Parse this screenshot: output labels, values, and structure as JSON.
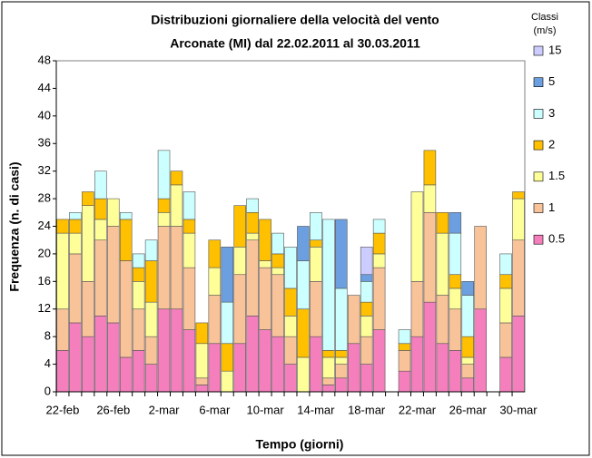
{
  "chart_data": {
    "type": "stacked-bar",
    "title": "Distribuzioni giornaliere della velocità del vento",
    "subtitle": "Arconate (MI) dal 22.02.2011 al 30.03.2011",
    "x_label": "Tempo (giorni)",
    "y_label": "Frequenza (n. di casi)",
    "legend_title": [
      "Classi",
      "(m/s)"
    ],
    "categories": [
      "22-feb",
      null,
      null,
      null,
      "26-feb",
      null,
      null,
      null,
      "2-mar",
      null,
      null,
      null,
      "6-mar",
      null,
      null,
      null,
      "10-mar",
      null,
      null,
      null,
      "14-mar",
      null,
      null,
      null,
      "18-mar",
      null,
      null,
      null,
      "22-mar",
      null,
      null,
      null,
      "26-mar",
      null,
      null,
      null,
      "30-mar"
    ],
    "series": [
      {
        "name": "0.5",
        "color": "#f57fbd",
        "values": [
          6,
          10,
          8,
          11,
          10,
          5,
          6,
          4,
          12,
          12,
          9,
          1,
          7,
          0,
          7,
          11,
          9,
          8,
          4,
          0,
          8,
          1,
          2,
          7,
          4,
          9,
          0,
          3,
          8,
          13,
          7,
          6,
          2,
          12,
          0,
          5,
          11
        ]
      },
      {
        "name": "1",
        "color": "#f9c39a",
        "values": [
          6,
          10,
          8,
          11,
          14,
          14,
          6,
          4,
          12,
          12,
          9,
          1,
          7,
          0,
          10,
          11,
          9,
          9,
          4,
          0,
          8,
          1,
          2,
          7,
          4,
          9,
          0,
          3,
          8,
          13,
          7,
          6,
          2,
          12,
          0,
          5,
          11
        ]
      },
      {
        "name": "1.5",
        "color": "#ffff99",
        "values": [
          11,
          3,
          11,
          3,
          4,
          0,
          4,
          5,
          2,
          6,
          5,
          5,
          4,
          3,
          4,
          1,
          1,
          1,
          3,
          5,
          5,
          3,
          1,
          0,
          3,
          2,
          0,
          0,
          13,
          4,
          9,
          3,
          1,
          0,
          0,
          5,
          6
        ]
      },
      {
        "name": "2",
        "color": "#ffc000",
        "values": [
          2,
          2,
          2,
          3,
          0,
          6,
          2,
          6,
          2,
          2,
          2,
          3,
          4,
          4,
          6,
          3,
          6,
          2,
          4,
          7,
          1,
          1,
          1,
          0,
          2,
          3,
          0,
          1,
          0,
          5,
          3,
          2,
          3,
          0,
          0,
          2,
          1
        ]
      },
      {
        "name": "3",
        "color": "#ccffff",
        "values": [
          0,
          1,
          0,
          4,
          0,
          1,
          2,
          3,
          7,
          0,
          4,
          0,
          0,
          6,
          0,
          2,
          0,
          3,
          6,
          7,
          4,
          19,
          9,
          0,
          3,
          2,
          0,
          2,
          0,
          0,
          0,
          6,
          6,
          0,
          0,
          3,
          0
        ]
      },
      {
        "name": "5",
        "color": "#6c9fe0",
        "values": [
          0,
          0,
          0,
          0,
          0,
          0,
          0,
          0,
          0,
          0,
          0,
          0,
          0,
          8,
          0,
          0,
          0,
          0,
          0,
          5,
          0,
          0,
          10,
          0,
          1,
          0,
          0,
          0,
          0,
          0,
          0,
          3,
          2,
          0,
          0,
          0,
          0
        ]
      },
      {
        "name": "15",
        "color": "#ccccff",
        "values": [
          0,
          0,
          0,
          0,
          0,
          0,
          0,
          0,
          0,
          0,
          0,
          0,
          0,
          0,
          0,
          0,
          0,
          0,
          0,
          0,
          0,
          0,
          0,
          0,
          4,
          0,
          0,
          0,
          0,
          0,
          0,
          0,
          0,
          0,
          0,
          0,
          0
        ]
      }
    ],
    "ylim": [
      0,
      48
    ],
    "yticks": [
      0,
      4,
      8,
      12,
      16,
      20,
      24,
      28,
      32,
      36,
      40,
      44,
      48
    ],
    "grid": false,
    "legend": "right"
  }
}
